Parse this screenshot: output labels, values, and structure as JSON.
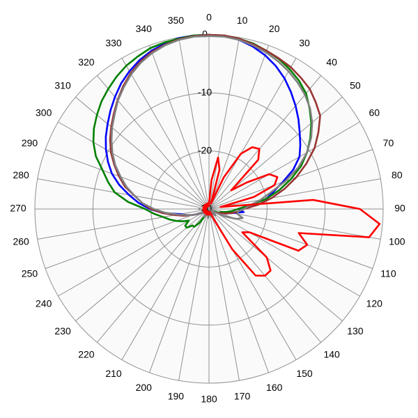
{
  "chart_data": {
    "type": "polar",
    "theta": [
      0,
      5,
      10,
      15,
      20,
      25,
      30,
      35,
      40,
      45,
      50,
      55,
      60,
      65,
      70,
      75,
      80,
      85,
      90,
      95,
      100,
      105,
      110,
      115,
      120,
      125,
      130,
      135,
      140,
      145,
      150,
      155,
      160,
      165,
      170,
      175,
      180,
      185,
      190,
      195,
      200,
      205,
      210,
      215,
      220,
      225,
      230,
      235,
      240,
      245,
      250,
      255,
      260,
      265,
      270,
      275,
      280,
      285,
      290,
      295,
      300,
      305,
      310,
      315,
      320,
      325,
      330,
      335,
      340,
      345,
      350,
      355
    ],
    "thetaticks": [
      0,
      10,
      20,
      30,
      40,
      50,
      60,
      70,
      80,
      90,
      100,
      110,
      120,
      130,
      140,
      150,
      160,
      170,
      180,
      190,
      200,
      210,
      220,
      230,
      240,
      250,
      260,
      270,
      280,
      290,
      300,
      310,
      320,
      330,
      340,
      350
    ],
    "rlim": [
      -30,
      0
    ],
    "rticks": [
      -30,
      -20,
      -10,
      0
    ],
    "grid": true,
    "series": [
      {
        "color": "#0000ff",
        "values": [
          0,
          -0.1,
          -0.4,
          -1,
          -1.8,
          -2.8,
          -4,
          -5.4,
          -6.8,
          -8.2,
          -9.6,
          -10.8,
          -12,
          -14,
          -16.5,
          -18.5,
          -20,
          -23,
          -25,
          -24,
          -26,
          -27,
          -28,
          -28.5,
          -29,
          -29.5,
          -29,
          -28.5,
          -29,
          -29.5,
          -29,
          -29,
          -28.5,
          -29,
          -29.5,
          -29,
          -29,
          -28.5,
          -29,
          -29,
          -29.5,
          -29,
          -28.5,
          -29,
          -29,
          -29.5,
          -29,
          -29,
          -28.5,
          -28,
          -27,
          -26,
          -25,
          -22,
          -19.8,
          -17.8,
          -16,
          -14,
          -12.2,
          -10.8,
          -9.5,
          -8.3,
          -7.2,
          -6,
          -4.8,
          -3.6,
          -2.6,
          -1.7,
          -1,
          -0.5,
          -0.1,
          0
        ]
      },
      {
        "color": "#008000",
        "values": [
          0,
          0,
          -0.2,
          -0.5,
          -1,
          -1.5,
          -2.2,
          -3,
          -4,
          -5.5,
          -7,
          -8.7,
          -10.5,
          -12.5,
          -15,
          -17.5,
          -20,
          -23,
          -25,
          -26,
          -27,
          -28,
          -28,
          -29,
          -29,
          -29.5,
          -29,
          -28.5,
          -29,
          -29.5,
          -29,
          -29,
          -28.5,
          -29,
          -29.5,
          -29,
          -29,
          -28.5,
          -29,
          -29,
          -29.5,
          -29,
          -28.5,
          -27,
          -26,
          -26,
          -25,
          -25,
          -26,
          -25,
          -24,
          -23,
          -22,
          -20.5,
          -19,
          -16,
          -13.5,
          -12,
          -10.5,
          -8.5,
          -7,
          -5.8,
          -4.8,
          -3.8,
          -3,
          -2.2,
          -1.5,
          -1,
          -0.5,
          -0.3,
          -0.2,
          0
        ]
      },
      {
        "color": "#993333",
        "values": [
          0,
          0,
          -0.2,
          -0.6,
          -1,
          -1.4,
          -1.8,
          -2.4,
          -3,
          -4,
          -5,
          -7,
          -9,
          -11.5,
          -14,
          -16.5,
          -19,
          -21.5,
          -24,
          -25,
          -26,
          -27,
          -28,
          -28.5,
          -29,
          -29.5,
          -29,
          -28.5,
          -29,
          -29.5,
          -29,
          -29,
          -28.5,
          -29,
          -29.5,
          -29,
          -29,
          -28.5,
          -29,
          -29,
          -29.5,
          -29,
          -28.5,
          -29,
          -29,
          -29.5,
          -29,
          -29,
          -28.5,
          -28,
          -27,
          -25.5,
          -24,
          -22,
          -20,
          -18.5,
          -17,
          -15,
          -13.5,
          -12,
          -10.5,
          -9.2,
          -8,
          -6.8,
          -5.5,
          -4.2,
          -3,
          -2,
          -1.2,
          -0.7,
          -0.3,
          -0.1
        ]
      },
      {
        "color": "#808080",
        "values": [
          -0.2,
          -0.2,
          -0.4,
          -0.8,
          -1.3,
          -1.9,
          -2.6,
          -3.4,
          -4.3,
          -5.4,
          -6.8,
          -8.5,
          -10.5,
          -13,
          -16,
          -19,
          -21,
          -23,
          -24,
          -25,
          -25,
          -24,
          -25,
          -27,
          -29,
          -29.5,
          -29,
          -28.5,
          -29,
          -29.5,
          -29,
          -29,
          -28.5,
          -29,
          -29.5,
          -29,
          -29,
          -28.5,
          -29,
          -29,
          -29.5,
          -29,
          -28.5,
          -29,
          -29,
          -29.5,
          -29,
          -29,
          -28.5,
          -28,
          -27,
          -26,
          -24.5,
          -22.5,
          -20.5,
          -18.5,
          -17,
          -15.3,
          -13.8,
          -12.2,
          -10.8,
          -9.5,
          -8.2,
          -7,
          -5.6,
          -4.4,
          -3.2,
          -2.2,
          -1.4,
          -0.8,
          -0.4,
          -0.2
        ]
      },
      {
        "color": "#ff0000",
        "values": [
          -29,
          -25,
          -21,
          -23,
          -29,
          -24,
          -19,
          -17,
          -16.5,
          -18,
          -25,
          -22,
          -18,
          -17,
          -18,
          -22,
          -28,
          -12,
          -4,
          -0.5,
          -2,
          -14,
          -12,
          -13,
          -22,
          -23,
          -17,
          -15,
          -15,
          -16,
          -22,
          -28,
          -29.5,
          -29,
          -29.5,
          -29.5,
          -29,
          -29.5,
          -29.5,
          -29,
          -29.5,
          -29.5,
          -29,
          -29.5,
          -29.5,
          -29,
          -29.5,
          -29.5,
          -29,
          -29.5,
          -29.5,
          -29,
          -29.5,
          -29.5,
          -29,
          -29.5,
          -29.5,
          -29,
          -29.5,
          -29.5,
          -29,
          -29.5,
          -29.5,
          -29,
          -29.5,
          -29.5,
          -29,
          -29.5,
          -29.5,
          -29,
          -29.5,
          -29.5
        ]
      }
    ]
  }
}
